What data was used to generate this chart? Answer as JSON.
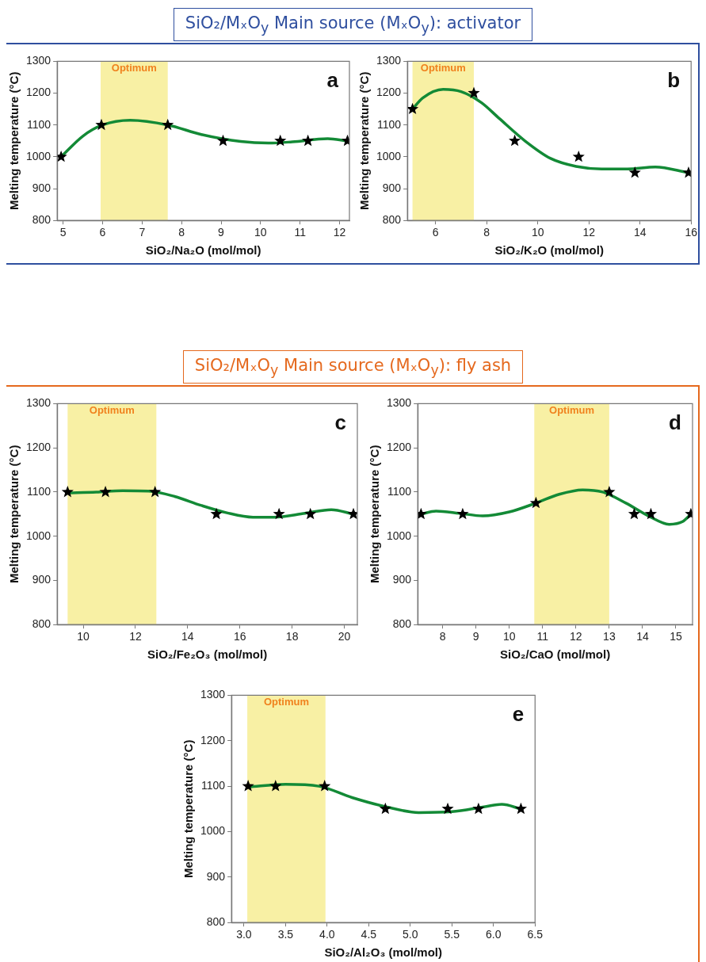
{
  "chart_data": [
    {
      "type": "scatter",
      "title": "SiO₂/MₓO$_{y}$ Main source (MₓO$_{y}$): activator",
      "xlabel": "SiO₂/Na₂O (mol/mol)",
      "ylabel": "Melting temperature (°C)",
      "xlim": [
        4.85,
        12.25
      ],
      "xticks": [
        5,
        6,
        7,
        8,
        9,
        10,
        11,
        12
      ],
      "ylim": [
        800,
        1300
      ],
      "yticks": [
        800,
        900,
        1000,
        1100,
        1200,
        1300
      ],
      "marker": "star",
      "annotations": [
        "a"
      ],
      "bands": [
        {
          "axis": "x",
          "from": 5.95,
          "to": 7.65,
          "label": "Optimum",
          "color": "#f8f0a4"
        }
      ],
      "series": [
        {
          "type": "scatter",
          "color": "#000000",
          "x": [
            4.95,
            5.97,
            7.65,
            9.05,
            10.5,
            11.2,
            12.2
          ],
          "values": [
            1000,
            1100,
            1100,
            1050,
            1050,
            1050,
            1050
          ]
        },
        {
          "type": "line",
          "color": "#138a36",
          "marker": "none",
          "x": [
            4.95,
            5.5,
            6,
            6.7,
            7.65,
            8.5,
            9.5,
            10.2,
            10.8,
            11.7,
            12.2
          ],
          "values": [
            1000,
            1065,
            1100,
            1115,
            1100,
            1070,
            1048,
            1043,
            1047,
            1057,
            1050
          ]
        }
      ]
    },
    {
      "type": "scatter",
      "xlabel": "SiO₂/K₂O (mol/mol)",
      "ylabel": "Melting temperature (°C)",
      "xlim": [
        4.9,
        16
      ],
      "xticks": [
        6,
        8,
        10,
        12,
        14,
        16
      ],
      "ylim": [
        800,
        1300
      ],
      "yticks": [
        800,
        900,
        1000,
        1100,
        1200,
        1300
      ],
      "marker": "star",
      "annotations": [
        "b"
      ],
      "bands": [
        {
          "axis": "x",
          "from": 5.1,
          "to": 7.5,
          "label": "Optimum",
          "color": "#f8f0a4"
        }
      ],
      "series": [
        {
          "type": "scatter",
          "color": "#000000",
          "x": [
            5.1,
            7.5,
            9.1,
            11.6,
            13.8,
            15.9
          ],
          "values": [
            1150,
            1200,
            1050,
            1000,
            950,
            950
          ]
        },
        {
          "type": "line",
          "color": "#138a36",
          "marker": "none",
          "x": [
            5.1,
            5.5,
            6.3,
            7,
            7.8,
            8.5,
            9.5,
            10.5,
            11.5,
            12.5,
            13.5,
            14.6,
            15.9
          ],
          "values": [
            1150,
            1185,
            1212,
            1205,
            1170,
            1120,
            1050,
            995,
            970,
            962,
            962,
            968,
            950
          ]
        }
      ]
    },
    {
      "type": "scatter",
      "title": "SiO₂/MₓO$_{y}$ Main source (MₓO$_{y}$): fly ash",
      "xlabel": "SiO₂/Fe₂O₃ (mol/mol)",
      "ylabel": "Melting temperature (°C)",
      "xlim": [
        9,
        20.5
      ],
      "xticks": [
        10,
        12,
        14,
        16,
        18,
        20
      ],
      "ylim": [
        800,
        1300
      ],
      "yticks": [
        800,
        900,
        1000,
        1100,
        1200,
        1300
      ],
      "marker": "star",
      "annotations": [
        "c"
      ],
      "bands": [
        {
          "axis": "x",
          "from": 9.4,
          "to": 12.8,
          "label": "Optimum",
          "color": "#f8f0a4"
        }
      ],
      "series": [
        {
          "type": "scatter",
          "color": "#000000",
          "x": [
            9.4,
            10.85,
            12.75,
            15.1,
            17.5,
            18.7,
            20.35
          ],
          "values": [
            1100,
            1100,
            1100,
            1050,
            1050,
            1050,
            1050
          ]
        },
        {
          "type": "line",
          "color": "#138a36",
          "marker": "none",
          "x": [
            9.4,
            10.5,
            11.5,
            12.5,
            13.5,
            14.5,
            15.5,
            16.5,
            17.3,
            18.5,
            19.5,
            20.35
          ],
          "values": [
            1098,
            1100,
            1103,
            1102,
            1090,
            1070,
            1053,
            1043,
            1043,
            1052,
            1060,
            1050
          ]
        }
      ]
    },
    {
      "type": "scatter",
      "xlabel": "SiO₂/CaO (mol/mol)",
      "ylabel": "Melting temperature (°C)",
      "xlim": [
        7.25,
        15.5
      ],
      "xticks": [
        8,
        9,
        10,
        11,
        12,
        13,
        14,
        15
      ],
      "ylim": [
        800,
        1300
      ],
      "yticks": [
        800,
        900,
        1000,
        1100,
        1200,
        1300
      ],
      "marker": "star",
      "annotations": [
        "d"
      ],
      "bands": [
        {
          "axis": "x",
          "from": 10.75,
          "to": 13,
          "label": "Optimum",
          "color": "#f8f0a4"
        }
      ],
      "series": [
        {
          "type": "scatter",
          "color": "#000000",
          "x": [
            7.35,
            8.6,
            10.8,
            13,
            13.75,
            14.25,
            15.45
          ],
          "values": [
            1050,
            1050,
            1075,
            1100,
            1050,
            1050,
            1050
          ]
        },
        {
          "type": "line",
          "color": "#138a36",
          "marker": "none",
          "x": [
            7.35,
            7.8,
            8.5,
            9.2,
            10,
            10.8,
            11.5,
            12.2,
            12.8,
            13.5,
            14.2,
            14.8,
            15.2,
            15.45
          ],
          "values": [
            1050,
            1057,
            1052,
            1046,
            1055,
            1075,
            1095,
            1105,
            1100,
            1075,
            1045,
            1027,
            1033,
            1050
          ]
        }
      ]
    },
    {
      "type": "scatter",
      "xlabel": "SiO₂/Al₂O₃ (mol/mol)",
      "ylabel": "Melting temperature (°C)",
      "xlim": [
        2.85,
        6.5
      ],
      "xticks": [
        {
          "value": 3,
          "label": "3.0"
        },
        3.5,
        {
          "value": 4,
          "label": "4.0"
        },
        4.5,
        {
          "value": 5,
          "label": "5.0"
        },
        5.5,
        {
          "value": 6,
          "label": "6.0"
        },
        6.5
      ],
      "ylim": [
        800,
        1300
      ],
      "yticks": [
        800,
        900,
        1000,
        1100,
        1200,
        1300
      ],
      "marker": "star",
      "annotations": [
        "e"
      ],
      "bands": [
        {
          "axis": "x",
          "from": 3.04,
          "to": 3.98,
          "label": "Optimum",
          "color": "#f8f0a4"
        }
      ],
      "series": [
        {
          "type": "scatter",
          "color": "#000000",
          "x": [
            3.05,
            3.38,
            3.97,
            4.7,
            5.45,
            5.82,
            6.33
          ],
          "values": [
            1100,
            1100,
            1100,
            1050,
            1050,
            1050,
            1050
          ]
        },
        {
          "type": "line",
          "color": "#138a36",
          "marker": "none",
          "x": [
            3.05,
            3.5,
            3.9,
            4.3,
            4.7,
            5.1,
            5.5,
            5.9,
            6.1,
            6.33
          ],
          "values": [
            1098,
            1104,
            1100,
            1075,
            1055,
            1042,
            1044,
            1055,
            1060,
            1050
          ]
        }
      ]
    }
  ]
}
